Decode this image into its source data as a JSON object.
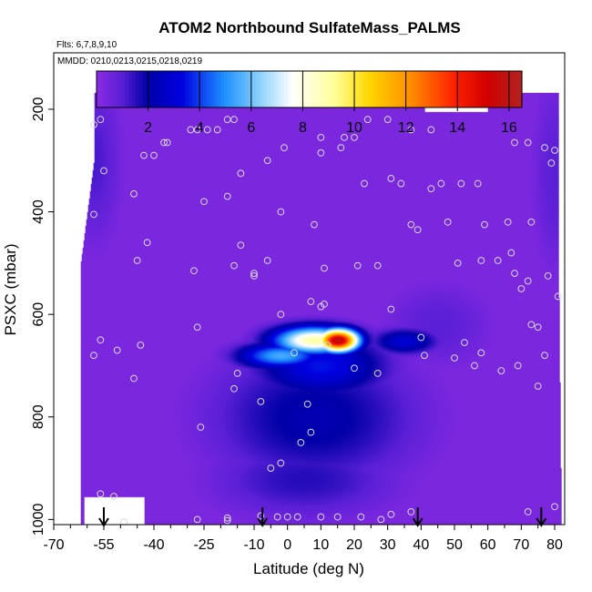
{
  "chart_data": {
    "type": "heatmap",
    "title": "ATOM2 Northbound SulfateMass_PALMS",
    "flights_note": "Flts: 6,7,8,9,10",
    "dates_note": "MMDD: 0210,0213,0215,0218,0219",
    "xlabel": "Latitude (deg N)",
    "ylabel": "PSXC (mbar)",
    "xlim": [
      -70,
      83
    ],
    "ylim": [
      1010,
      90
    ],
    "y_reversed": true,
    "x_ticks": [
      -70,
      -55,
      -40,
      -25,
      -10,
      0,
      10,
      20,
      30,
      40,
      50,
      60,
      70,
      80
    ],
    "x_tick_labels": [
      "-70",
      "-55",
      "-40",
      "-25",
      "-10",
      "0",
      "10",
      "20",
      "30",
      "40",
      "50",
      "60",
      "70",
      "80"
    ],
    "x_minor_ticks": [
      -65,
      -60,
      -50,
      -45,
      -35,
      -30,
      -20,
      -15,
      -5,
      5,
      15,
      25,
      35,
      45,
      55,
      65,
      75
    ],
    "y_ticks": [
      200,
      400,
      600,
      800,
      1000
    ],
    "y_tick_labels": [
      "200",
      "400",
      "600",
      "800",
      "1000"
    ],
    "colorbar": {
      "min": 0,
      "max": 16.5,
      "ticks": [
        2,
        4,
        6,
        8,
        10,
        12,
        14,
        16
      ],
      "tick_labels": [
        "2",
        "4",
        "6",
        "8",
        "10",
        "12",
        "14",
        "16"
      ],
      "stops": [
        [
          0.0,
          "#8a2be2"
        ],
        [
          0.06,
          "#5a1fd6"
        ],
        [
          0.12,
          "#0000a8"
        ],
        [
          0.2,
          "#0000e0"
        ],
        [
          0.3,
          "#1e90ff"
        ],
        [
          0.38,
          "#87cefa"
        ],
        [
          0.46,
          "#ffffff"
        ],
        [
          0.56,
          "#ffff99"
        ],
        [
          0.64,
          "#ffd700"
        ],
        [
          0.74,
          "#ff8c00"
        ],
        [
          0.84,
          "#ff2000"
        ],
        [
          0.92,
          "#d00000"
        ],
        [
          1.0,
          "#b22222"
        ]
      ]
    },
    "domain": {
      "lat_min": -58,
      "lat_max": 81,
      "p_top": 168,
      "p_bottom": 1010,
      "left_edge": [
        [
          -58,
          168
        ],
        [
          -58,
          300
        ],
        [
          -62,
          500
        ],
        [
          -62,
          1010
        ]
      ],
      "right_edge": [
        [
          81,
          170
        ],
        [
          81,
          400
        ],
        [
          82,
          1010
        ]
      ],
      "top_gap": {
        "lat_from": 41,
        "lat_to": 60,
        "p": 205
      },
      "missing_bottom_left": {
        "lat_from": -61,
        "lat_to": -43,
        "p_from": 955
      }
    },
    "background_value": 0.3,
    "features": [
      {
        "lat": 15,
        "p": 650,
        "value": 16.0,
        "sx": 4.5,
        "sy": 16
      },
      {
        "lat": 8,
        "p": 650,
        "value": 9.0,
        "sx": 9,
        "sy": 20
      },
      {
        "lat": 35,
        "p": 652,
        "value": 3.0,
        "sx": 7,
        "sy": 18
      },
      {
        "lat": -2,
        "p": 680,
        "value": 5.5,
        "sx": 9,
        "sy": 18
      },
      {
        "lat": 10,
        "p": 700,
        "value": 3.5,
        "sx": 14,
        "sy": 45
      },
      {
        "lat": 8,
        "p": 800,
        "value": 2.2,
        "sx": 22,
        "sy": 95
      },
      {
        "lat": 5,
        "p": 920,
        "value": 1.6,
        "sx": 20,
        "sy": 55
      },
      {
        "lat": -58,
        "p": 300,
        "value": 1.2,
        "sx": 6,
        "sy": 120
      },
      {
        "lat": 80,
        "p": 330,
        "value": 1.0,
        "sx": 5,
        "sy": 140
      },
      {
        "lat": 45,
        "p": 620,
        "value": 1.0,
        "sx": 12,
        "sy": 60
      }
    ],
    "obs_points": [
      [
        -58,
        230
      ],
      [
        -56,
        220
      ],
      [
        -50,
        190
      ],
      [
        -55,
        320
      ],
      [
        -58,
        405
      ],
      [
        -46,
        365
      ],
      [
        -43,
        290
      ],
      [
        -40,
        290
      ],
      [
        -37,
        265
      ],
      [
        -36,
        265
      ],
      [
        -29,
        240
      ],
      [
        -27,
        240
      ],
      [
        -24,
        240
      ],
      [
        -21,
        240
      ],
      [
        -18,
        220
      ],
      [
        -16,
        220
      ],
      [
        -14,
        325
      ],
      [
        -18,
        370
      ],
      [
        -6,
        300
      ],
      [
        -1,
        275
      ],
      [
        10,
        255
      ],
      [
        10,
        285
      ],
      [
        16,
        275
      ],
      [
        17,
        255
      ],
      [
        20,
        255
      ],
      [
        23,
        345
      ],
      [
        24,
        220
      ],
      [
        30,
        220
      ],
      [
        31,
        335
      ],
      [
        34,
        345
      ],
      [
        37,
        240
      ],
      [
        43,
        240
      ],
      [
        43,
        355
      ],
      [
        46,
        345
      ],
      [
        52,
        345
      ],
      [
        57,
        345
      ],
      [
        68,
        265
      ],
      [
        72,
        265
      ],
      [
        77,
        275
      ],
      [
        80,
        280
      ],
      [
        79,
        305
      ],
      [
        -25,
        380
      ],
      [
        -2,
        400
      ],
      [
        8,
        425
      ],
      [
        37,
        425
      ],
      [
        39,
        435
      ],
      [
        48,
        420
      ],
      [
        59,
        425
      ],
      [
        66,
        420
      ],
      [
        73,
        420
      ],
      [
        -42,
        460
      ],
      [
        -45,
        495
      ],
      [
        -14,
        465
      ],
      [
        -28,
        515
      ],
      [
        -6,
        495
      ],
      [
        11,
        510
      ],
      [
        21,
        505
      ],
      [
        27,
        505
      ],
      [
        51,
        500
      ],
      [
        58,
        495
      ],
      [
        63,
        495
      ],
      [
        67,
        480
      ],
      [
        68,
        520
      ],
      [
        72,
        535
      ],
      [
        78,
        525
      ],
      [
        81,
        565
      ],
      [
        -16,
        505
      ],
      [
        -10,
        525
      ],
      [
        -51,
        670
      ],
      [
        -56,
        650
      ],
      [
        -58,
        680
      ],
      [
        -44,
        660
      ],
      [
        -27,
        625
      ],
      [
        -15,
        715
      ],
      [
        -16,
        745
      ],
      [
        -10,
        520
      ],
      [
        -2,
        600
      ],
      [
        2,
        675
      ],
      [
        7,
        575
      ],
      [
        10,
        585
      ],
      [
        12,
        660
      ],
      [
        20,
        705
      ],
      [
        27,
        715
      ],
      [
        31,
        590
      ],
      [
        40,
        645
      ],
      [
        41,
        680
      ],
      [
        53,
        655
      ],
      [
        50,
        685
      ],
      [
        58,
        675
      ],
      [
        56,
        700
      ],
      [
        64,
        710
      ],
      [
        69,
        700
      ],
      [
        73,
        620
      ],
      [
        75,
        625
      ],
      [
        77,
        680
      ],
      [
        75,
        740
      ],
      [
        -46,
        725
      ],
      [
        -8,
        770
      ],
      [
        6,
        775
      ],
      [
        11,
        580
      ],
      [
        4,
        850
      ],
      [
        -2,
        890
      ],
      [
        -5,
        900
      ],
      [
        -26,
        820
      ],
      [
        7,
        830
      ],
      [
        -56,
        950
      ],
      [
        -52,
        955
      ],
      [
        -8,
        993
      ],
      [
        -18,
        997
      ],
      [
        -18,
        1002
      ],
      [
        -3,
        995
      ],
      [
        0,
        995
      ],
      [
        3,
        995
      ],
      [
        10,
        995
      ],
      [
        15,
        995
      ],
      [
        22,
        995
      ],
      [
        28,
        1000
      ],
      [
        31,
        990
      ],
      [
        37,
        985
      ],
      [
        -49,
        1005
      ],
      [
        -27,
        1000
      ],
      [
        72,
        985
      ],
      [
        80,
        975
      ],
      [
        70,
        550
      ]
    ],
    "arrow_markers_lat": [
      -55,
      -7.5,
      39,
      76
    ]
  }
}
